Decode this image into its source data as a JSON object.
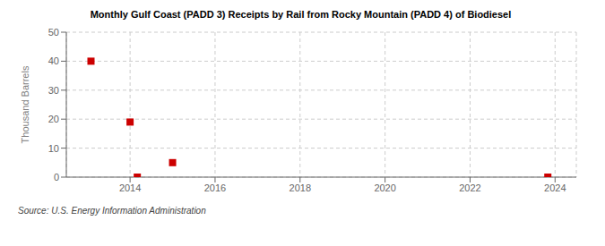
{
  "chart_data": {
    "type": "scatter",
    "title": "Monthly Gulf Coast (PADD 3) Receipts by Rail from Rocky Mountain (PADD 4) of Biodiesel",
    "y_label": "Thousand Barrels",
    "annotations": [
      "Source: U.S. Energy Information Administration"
    ],
    "x": [
      2013.08,
      2014.0,
      2014.17,
      2015.0,
      2023.83
    ],
    "values": [
      40,
      19,
      0,
      5,
      0
    ],
    "color": "#cc0000",
    "marker": "square",
    "xlim": [
      2012.5,
      2024.5
    ],
    "ylim": [
      0,
      50
    ],
    "xticks": [
      2014,
      2016,
      2018,
      2020,
      2022,
      2024
    ],
    "yticks": [
      0,
      10,
      20,
      30,
      40,
      50
    ],
    "grid": true
  }
}
